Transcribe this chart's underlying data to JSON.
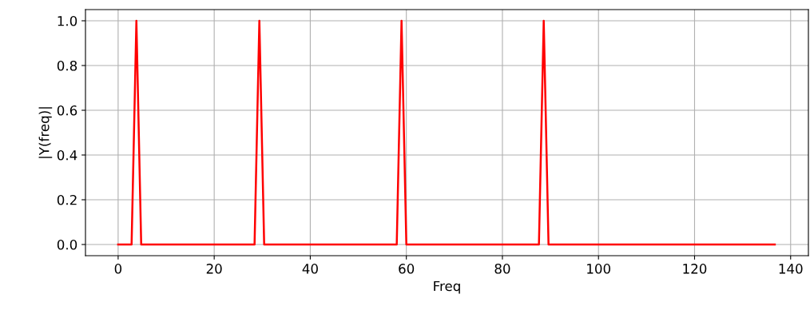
{
  "chart_data": {
    "type": "line",
    "xlabel": "Freq",
    "ylabel": "|Y(freq)|",
    "x": [
      0,
      2.8,
      3.8,
      4.8,
      28.4,
      29.4,
      30.4,
      58,
      59,
      60,
      87.6,
      88.6,
      89.6,
      136.7
    ],
    "series": [
      {
        "color": "#ff0000",
        "values": [
          0,
          0,
          1,
          0,
          0,
          1,
          0,
          0,
          1,
          0,
          0,
          1,
          0,
          0
        ]
      }
    ],
    "xlim": [
      -6.8,
      143.7
    ],
    "xticks": [
      0,
      20,
      40,
      60,
      80,
      100,
      120,
      140
    ],
    "ylim": [
      -0.05,
      1.05
    ],
    "yticks": [
      {
        "value": 0,
        "label": "0.0"
      },
      {
        "value": 0.2,
        "label": "0.2"
      },
      {
        "value": 0.4,
        "label": "0.4"
      },
      {
        "value": 0.6,
        "label": "0.6"
      },
      {
        "value": 0.8,
        "label": "0.8"
      },
      {
        "value": 1.0,
        "label": "1.0"
      }
    ],
    "grid": true
  }
}
